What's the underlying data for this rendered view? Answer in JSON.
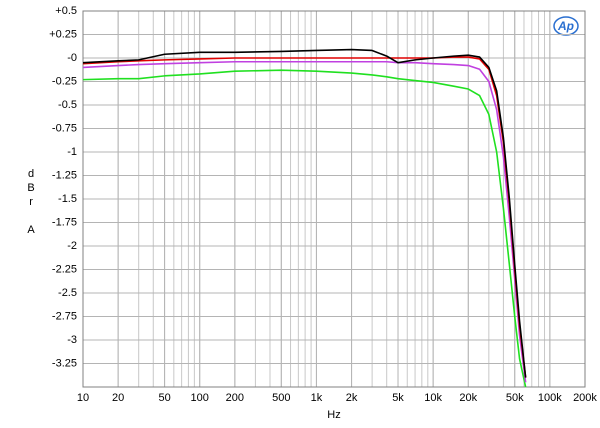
{
  "chart_data": {
    "type": "line",
    "xlabel": "Hz",
    "ylabel": "dBr A",
    "logo": "Ap",
    "xscale": "log",
    "grid": true,
    "xlim": [
      10,
      200000
    ],
    "ylim": [
      -3.5,
      0.5
    ],
    "xticks": [
      10,
      20,
      50,
      100,
      200,
      500,
      {
        "value": 1000,
        "label": "1k"
      },
      {
        "value": 2000,
        "label": "2k"
      },
      {
        "value": 5000,
        "label": "5k"
      },
      {
        "value": 10000,
        "label": "10k"
      },
      {
        "value": 20000,
        "label": "20k"
      },
      {
        "value": 50000,
        "label": "50k"
      },
      {
        "value": 100000,
        "label": "100k"
      },
      {
        "value": 200000,
        "label": "200k"
      }
    ],
    "yticks": [
      {
        "value": 0.5,
        "label": "+0.5"
      },
      {
        "value": 0.25,
        "label": "+0.25"
      },
      {
        "value": 0,
        "label": "-0"
      },
      -0.25,
      -0.5,
      -0.75,
      -1,
      -1.25,
      -1.5,
      -1.75,
      -2,
      -2.25,
      -2.5,
      -2.75,
      -3,
      -3.25
    ],
    "x": [
      10,
      20,
      30,
      50,
      100,
      200,
      500,
      1000,
      2000,
      3000,
      4000,
      5000,
      7000,
      10000,
      15000,
      20000,
      25000,
      30000,
      35000,
      40000,
      45000,
      50000,
      55000,
      62000
    ],
    "series": [
      {
        "color": "#20e020",
        "values": [
          -0.23,
          -0.22,
          -0.22,
          -0.19,
          -0.17,
          -0.14,
          -0.13,
          -0.14,
          -0.16,
          -0.18,
          -0.2,
          -0.22,
          -0.24,
          -0.26,
          -0.3,
          -0.33,
          -0.4,
          -0.6,
          -1.0,
          -1.6,
          -2.2,
          -2.75,
          -3.2,
          -3.5
        ]
      },
      {
        "color": "#c040e0",
        "values": [
          -0.1,
          -0.08,
          -0.07,
          -0.06,
          -0.05,
          -0.04,
          -0.04,
          -0.04,
          -0.04,
          -0.04,
          -0.04,
          -0.05,
          -0.05,
          -0.06,
          -0.07,
          -0.08,
          -0.12,
          -0.25,
          -0.55,
          -1.05,
          -1.7,
          -2.35,
          -2.95,
          -3.45
        ]
      },
      {
        "color": "#e00000",
        "values": [
          -0.06,
          -0.04,
          -0.03,
          -0.02,
          -0.01,
          0,
          0,
          0,
          0,
          0,
          0,
          0,
          0,
          0,
          0.01,
          0.01,
          -0.01,
          -0.12,
          -0.4,
          -0.9,
          -1.55,
          -2.25,
          -2.85,
          -3.4
        ]
      },
      {
        "color": "#000000",
        "values": [
          -0.05,
          -0.03,
          -0.02,
          0.04,
          0.06,
          0.06,
          0.07,
          0.08,
          0.09,
          0.08,
          0.02,
          -0.05,
          -0.02,
          0,
          0.02,
          0.03,
          0.01,
          -0.1,
          -0.35,
          -0.85,
          -1.5,
          -2.2,
          -2.8,
          -3.4
        ]
      }
    ]
  }
}
